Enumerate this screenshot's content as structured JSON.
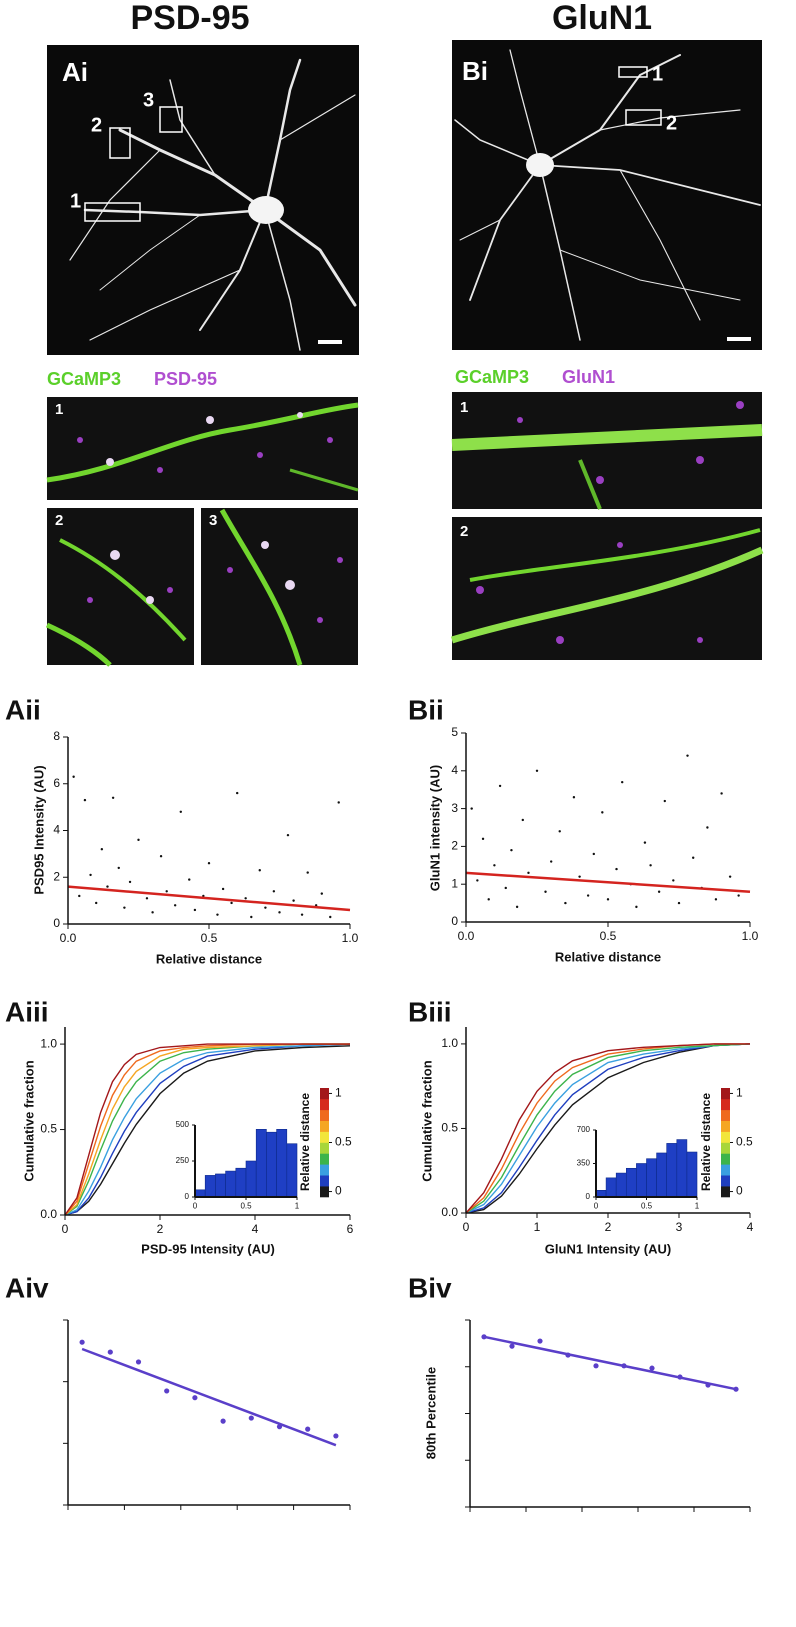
{
  "titles": [
    "PSD-95",
    "GluN1"
  ],
  "images": [
    {
      "label": "Ai",
      "roi_labels": [
        "1",
        "2",
        "3"
      ]
    },
    {
      "label": "Bi",
      "roi_labels": [
        "1",
        "2"
      ]
    }
  ],
  "insets": [
    {
      "legend": [
        "GCaMP3",
        "PSD-95"
      ],
      "tiles": [
        "1",
        "2",
        "3"
      ]
    },
    {
      "legend": [
        "GCaMP3",
        "GluN1"
      ],
      "tiles": [
        "1",
        "2"
      ]
    }
  ],
  "chart_data": [
    {
      "type": "scatter",
      "panel": "Aii",
      "xlabel": "Relative distance",
      "ylabel": "PSD95 Intensity (AU)",
      "xlim": [
        0,
        1
      ],
      "xticks": [
        {
          "value": 0,
          "label": "0.0"
        },
        {
          "value": 0.5,
          "label": "0.5"
        },
        {
          "value": 1,
          "label": "1.0"
        }
      ],
      "ylim": [
        0,
        8
      ],
      "yticks": [
        0,
        2,
        4,
        6,
        8
      ],
      "series": [
        {
          "color": "#111111",
          "x": [
            0.02,
            0.04,
            0.06,
            0.08,
            0.1,
            0.12,
            0.14,
            0.16,
            0.18,
            0.2,
            0.22,
            0.25,
            0.28,
            0.3,
            0.33,
            0.35,
            0.38,
            0.4,
            0.43,
            0.45,
            0.48,
            0.5,
            0.53,
            0.55,
            0.58,
            0.6,
            0.63,
            0.65,
            0.68,
            0.7,
            0.73,
            0.75,
            0.78,
            0.8,
            0.83,
            0.85,
            0.88,
            0.9,
            0.93,
            0.96
          ],
          "values": [
            6.3,
            1.2,
            5.3,
            2.1,
            0.9,
            3.2,
            1.6,
            5.4,
            2.4,
            0.7,
            1.8,
            3.6,
            1.1,
            0.5,
            2.9,
            1.4,
            0.8,
            4.8,
            1.9,
            0.6,
            1.2,
            2.6,
            0.4,
            1.5,
            0.9,
            5.6,
            1.1,
            0.3,
            2.3,
            0.7,
            1.4,
            0.5,
            3.8,
            1.0,
            0.4,
            2.2,
            0.8,
            1.3,
            0.3,
            5.2
          ]
        },
        {
          "kind": "line",
          "color": "#d4241f",
          "x": [
            0,
            1
          ],
          "values": [
            1.6,
            0.6
          ]
        }
      ]
    },
    {
      "type": "scatter",
      "panel": "Bii",
      "xlabel": "Relative distance",
      "ylabel": "GluN1 intensity (AU)",
      "xlim": [
        0,
        1
      ],
      "xticks": [
        {
          "value": 0,
          "label": "0.0"
        },
        {
          "value": 0.5,
          "label": "0.5"
        },
        {
          "value": 1,
          "label": "1.0"
        }
      ],
      "ylim": [
        0,
        5
      ],
      "yticks": [
        0,
        1,
        2,
        3,
        4,
        5
      ],
      "series": [
        {
          "color": "#111111",
          "x": [
            0.02,
            0.04,
            0.06,
            0.08,
            0.1,
            0.12,
            0.14,
            0.16,
            0.18,
            0.2,
            0.22,
            0.25,
            0.28,
            0.3,
            0.33,
            0.35,
            0.38,
            0.4,
            0.43,
            0.45,
            0.48,
            0.5,
            0.53,
            0.55,
            0.58,
            0.6,
            0.63,
            0.65,
            0.68,
            0.7,
            0.73,
            0.75,
            0.78,
            0.8,
            0.83,
            0.85,
            0.88,
            0.9,
            0.93,
            0.96
          ],
          "values": [
            3.0,
            1.1,
            2.2,
            0.6,
            1.5,
            3.6,
            0.9,
            1.9,
            0.4,
            2.7,
            1.3,
            4.0,
            0.8,
            1.6,
            2.4,
            0.5,
            3.3,
            1.2,
            0.7,
            1.8,
            2.9,
            0.6,
            1.4,
            3.7,
            1.0,
            0.4,
            2.1,
            1.5,
            0.8,
            3.2,
            1.1,
            0.5,
            4.4,
            1.7,
            0.9,
            2.5,
            0.6,
            3.4,
            1.2,
            0.7
          ]
        },
        {
          "kind": "line",
          "color": "#d4241f",
          "x": [
            0,
            1
          ],
          "values": [
            1.3,
            0.8
          ]
        }
      ]
    },
    {
      "type": "line",
      "panel": "Aiii",
      "xlabel": "PSD-95 Intensity (AU)",
      "ylabel": "Cumulative fraction",
      "xlim": [
        0,
        6
      ],
      "xticks": [
        0,
        2,
        4,
        6
      ],
      "ylim": [
        0,
        1.1
      ],
      "yticks": [
        {
          "value": 0,
          "label": "0.0"
        },
        {
          "value": 0.5,
          "label": "0.5"
        },
        {
          "value": 1,
          "label": "1.0"
        }
      ],
      "x": [
        0,
        0.25,
        0.5,
        0.75,
        1,
        1.25,
        1.5,
        2,
        2.5,
        3,
        4,
        5,
        6
      ],
      "series": [
        {
          "color": "#1a1a1a",
          "values": [
            0,
            0.02,
            0.08,
            0.18,
            0.3,
            0.42,
            0.53,
            0.71,
            0.83,
            0.9,
            0.96,
            0.98,
            0.99
          ]
        },
        {
          "color": "#1f3fbf",
          "values": [
            0,
            0.02,
            0.1,
            0.22,
            0.36,
            0.49,
            0.6,
            0.77,
            0.87,
            0.93,
            0.97,
            0.99,
            1
          ]
        },
        {
          "color": "#3aa0e0",
          "values": [
            0,
            0.03,
            0.14,
            0.28,
            0.44,
            0.57,
            0.68,
            0.83,
            0.91,
            0.95,
            0.98,
            0.99,
            1
          ]
        },
        {
          "color": "#3cb44b",
          "values": [
            0,
            0.05,
            0.2,
            0.38,
            0.55,
            0.68,
            0.78,
            0.9,
            0.95,
            0.97,
            0.99,
            1,
            1
          ]
        },
        {
          "color": "#f5a623",
          "values": [
            0,
            0.06,
            0.24,
            0.44,
            0.62,
            0.75,
            0.84,
            0.93,
            0.97,
            0.98,
            0.99,
            1,
            1
          ]
        },
        {
          "color": "#ef6a1e",
          "values": [
            0,
            0.08,
            0.3,
            0.52,
            0.7,
            0.82,
            0.9,
            0.96,
            0.98,
            0.99,
            1,
            1,
            1
          ]
        },
        {
          "color": "#a3171a",
          "values": [
            0,
            0.1,
            0.35,
            0.6,
            0.78,
            0.88,
            0.94,
            0.98,
            0.99,
            1,
            1,
            1,
            1
          ]
        }
      ],
      "colorbar": {
        "label": "Relative distance",
        "colors": [
          "#1a1a1a",
          "#1f3fbf",
          "#3aa0e0",
          "#3cb44b",
          "#a8d63a",
          "#f2e63c",
          "#f5a623",
          "#ef6a1e",
          "#d62a1e",
          "#a3171a"
        ],
        "ticks": [
          0,
          0.5,
          1
        ]
      }
    },
    {
      "type": "histogram",
      "bins": [
        0,
        0.1,
        0.2,
        0.3,
        0.4,
        0.5,
        0.6,
        0.7,
        0.8,
        0.9,
        1
      ],
      "values": [
        50,
        150,
        160,
        180,
        200,
        250,
        470,
        450,
        470,
        370
      ],
      "color": "#1f3fc4",
      "xlim": [
        0,
        1
      ],
      "xticks": [
        0,
        0.5,
        1
      ],
      "ylim": [
        0,
        500
      ],
      "yticks": [
        0,
        250,
        500
      ]
    },
    {
      "type": "line",
      "panel": "Biii",
      "xlabel": "GluN1 Intensity (AU)",
      "ylabel": "Cumulative fraction",
      "xlim": [
        0,
        4
      ],
      "xticks": [
        0,
        1,
        2,
        3,
        4
      ],
      "ylim": [
        0,
        1.1
      ],
      "yticks": [
        {
          "value": 0,
          "label": "0.0"
        },
        {
          "value": 0.5,
          "label": "0.5"
        },
        {
          "value": 1,
          "label": "1.0"
        }
      ],
      "x": [
        0,
        0.25,
        0.5,
        0.75,
        1,
        1.25,
        1.5,
        2,
        2.5,
        3,
        3.5,
        4
      ],
      "series": [
        {
          "color": "#1a1a1a",
          "values": [
            0,
            0.02,
            0.1,
            0.23,
            0.38,
            0.52,
            0.64,
            0.8,
            0.89,
            0.95,
            0.99,
            1
          ]
        },
        {
          "color": "#1f3fbf",
          "values": [
            0,
            0.03,
            0.12,
            0.27,
            0.43,
            0.58,
            0.7,
            0.85,
            0.92,
            0.96,
            0.99,
            1
          ]
        },
        {
          "color": "#3aa0e0",
          "values": [
            0,
            0.05,
            0.17,
            0.34,
            0.51,
            0.65,
            0.76,
            0.89,
            0.94,
            0.97,
            0.99,
            1
          ]
        },
        {
          "color": "#3cb44b",
          "values": [
            0,
            0.07,
            0.21,
            0.4,
            0.58,
            0.72,
            0.82,
            0.92,
            0.96,
            0.98,
            0.99,
            1
          ]
        },
        {
          "color": "#ef6a1e",
          "values": [
            0,
            0.09,
            0.26,
            0.47,
            0.65,
            0.78,
            0.86,
            0.94,
            0.97,
            0.99,
            1,
            1
          ]
        },
        {
          "color": "#a3171a",
          "values": [
            0,
            0.12,
            0.32,
            0.55,
            0.72,
            0.83,
            0.9,
            0.96,
            0.98,
            0.99,
            1,
            1
          ]
        }
      ],
      "colorbar": {
        "label": "Relative distance",
        "colors": [
          "#1a1a1a",
          "#1f3fbf",
          "#3aa0e0",
          "#3cb44b",
          "#a8d63a",
          "#f2e63c",
          "#f5a623",
          "#ef6a1e",
          "#d62a1e",
          "#a3171a"
        ],
        "ticks": [
          0,
          0.5,
          1
        ]
      }
    },
    {
      "type": "histogram",
      "bins": [
        0,
        0.1,
        0.2,
        0.3,
        0.4,
        0.5,
        0.6,
        0.7,
        0.8,
        0.9,
        1
      ],
      "values": [
        70,
        200,
        250,
        300,
        350,
        400,
        460,
        560,
        600,
        470
      ],
      "color": "#1f3fc4",
      "xlim": [
        0,
        1
      ],
      "xticks": [
        0,
        0.5,
        1
      ],
      "ylim": [
        0,
        700
      ],
      "yticks": [
        0,
        350,
        700
      ]
    },
    {
      "type": "scatter",
      "panel": "Aiv",
      "tick_labels": false,
      "xlim": [
        0,
        1
      ],
      "xticks": [
        0,
        0.2,
        0.4,
        0.6,
        0.8,
        1
      ],
      "ylim": [
        0,
        3
      ],
      "yticks": [
        0,
        1,
        2,
        3
      ],
      "series": [
        {
          "color": "#5a3fc9",
          "x": [
            0.05,
            0.15,
            0.25,
            0.35,
            0.45,
            0.55,
            0.65,
            0.75,
            0.85,
            0.95
          ],
          "values": [
            2.64,
            2.48,
            2.32,
            1.85,
            1.74,
            1.36,
            1.41,
            1.27,
            1.23,
            1.12
          ]
        },
        {
          "kind": "line",
          "color": "#5a3fc9",
          "x": [
            0.05,
            0.95
          ],
          "values": [
            2.53,
            0.97
          ]
        }
      ]
    },
    {
      "type": "scatter",
      "panel": "Biv",
      "ylabel": "80th Percentile",
      "tick_labels": false,
      "xlim": [
        0,
        1
      ],
      "xticks": [
        0,
        0.2,
        0.4,
        0.6,
        0.8,
        1
      ],
      "ylim": [
        0,
        4
      ],
      "yticks": [
        0,
        1,
        2,
        3,
        4
      ],
      "series": [
        {
          "color": "#5a3fc9",
          "x": [
            0.05,
            0.15,
            0.25,
            0.35,
            0.45,
            0.55,
            0.65,
            0.75,
            0.85,
            0.95
          ],
          "values": [
            3.64,
            3.44,
            3.55,
            3.25,
            3.02,
            3.02,
            2.97,
            2.78,
            2.61,
            2.52
          ]
        },
        {
          "kind": "line",
          "color": "#5a3fc9",
          "x": [
            0.05,
            0.95
          ],
          "values": [
            3.64,
            2.52
          ]
        }
      ]
    }
  ]
}
